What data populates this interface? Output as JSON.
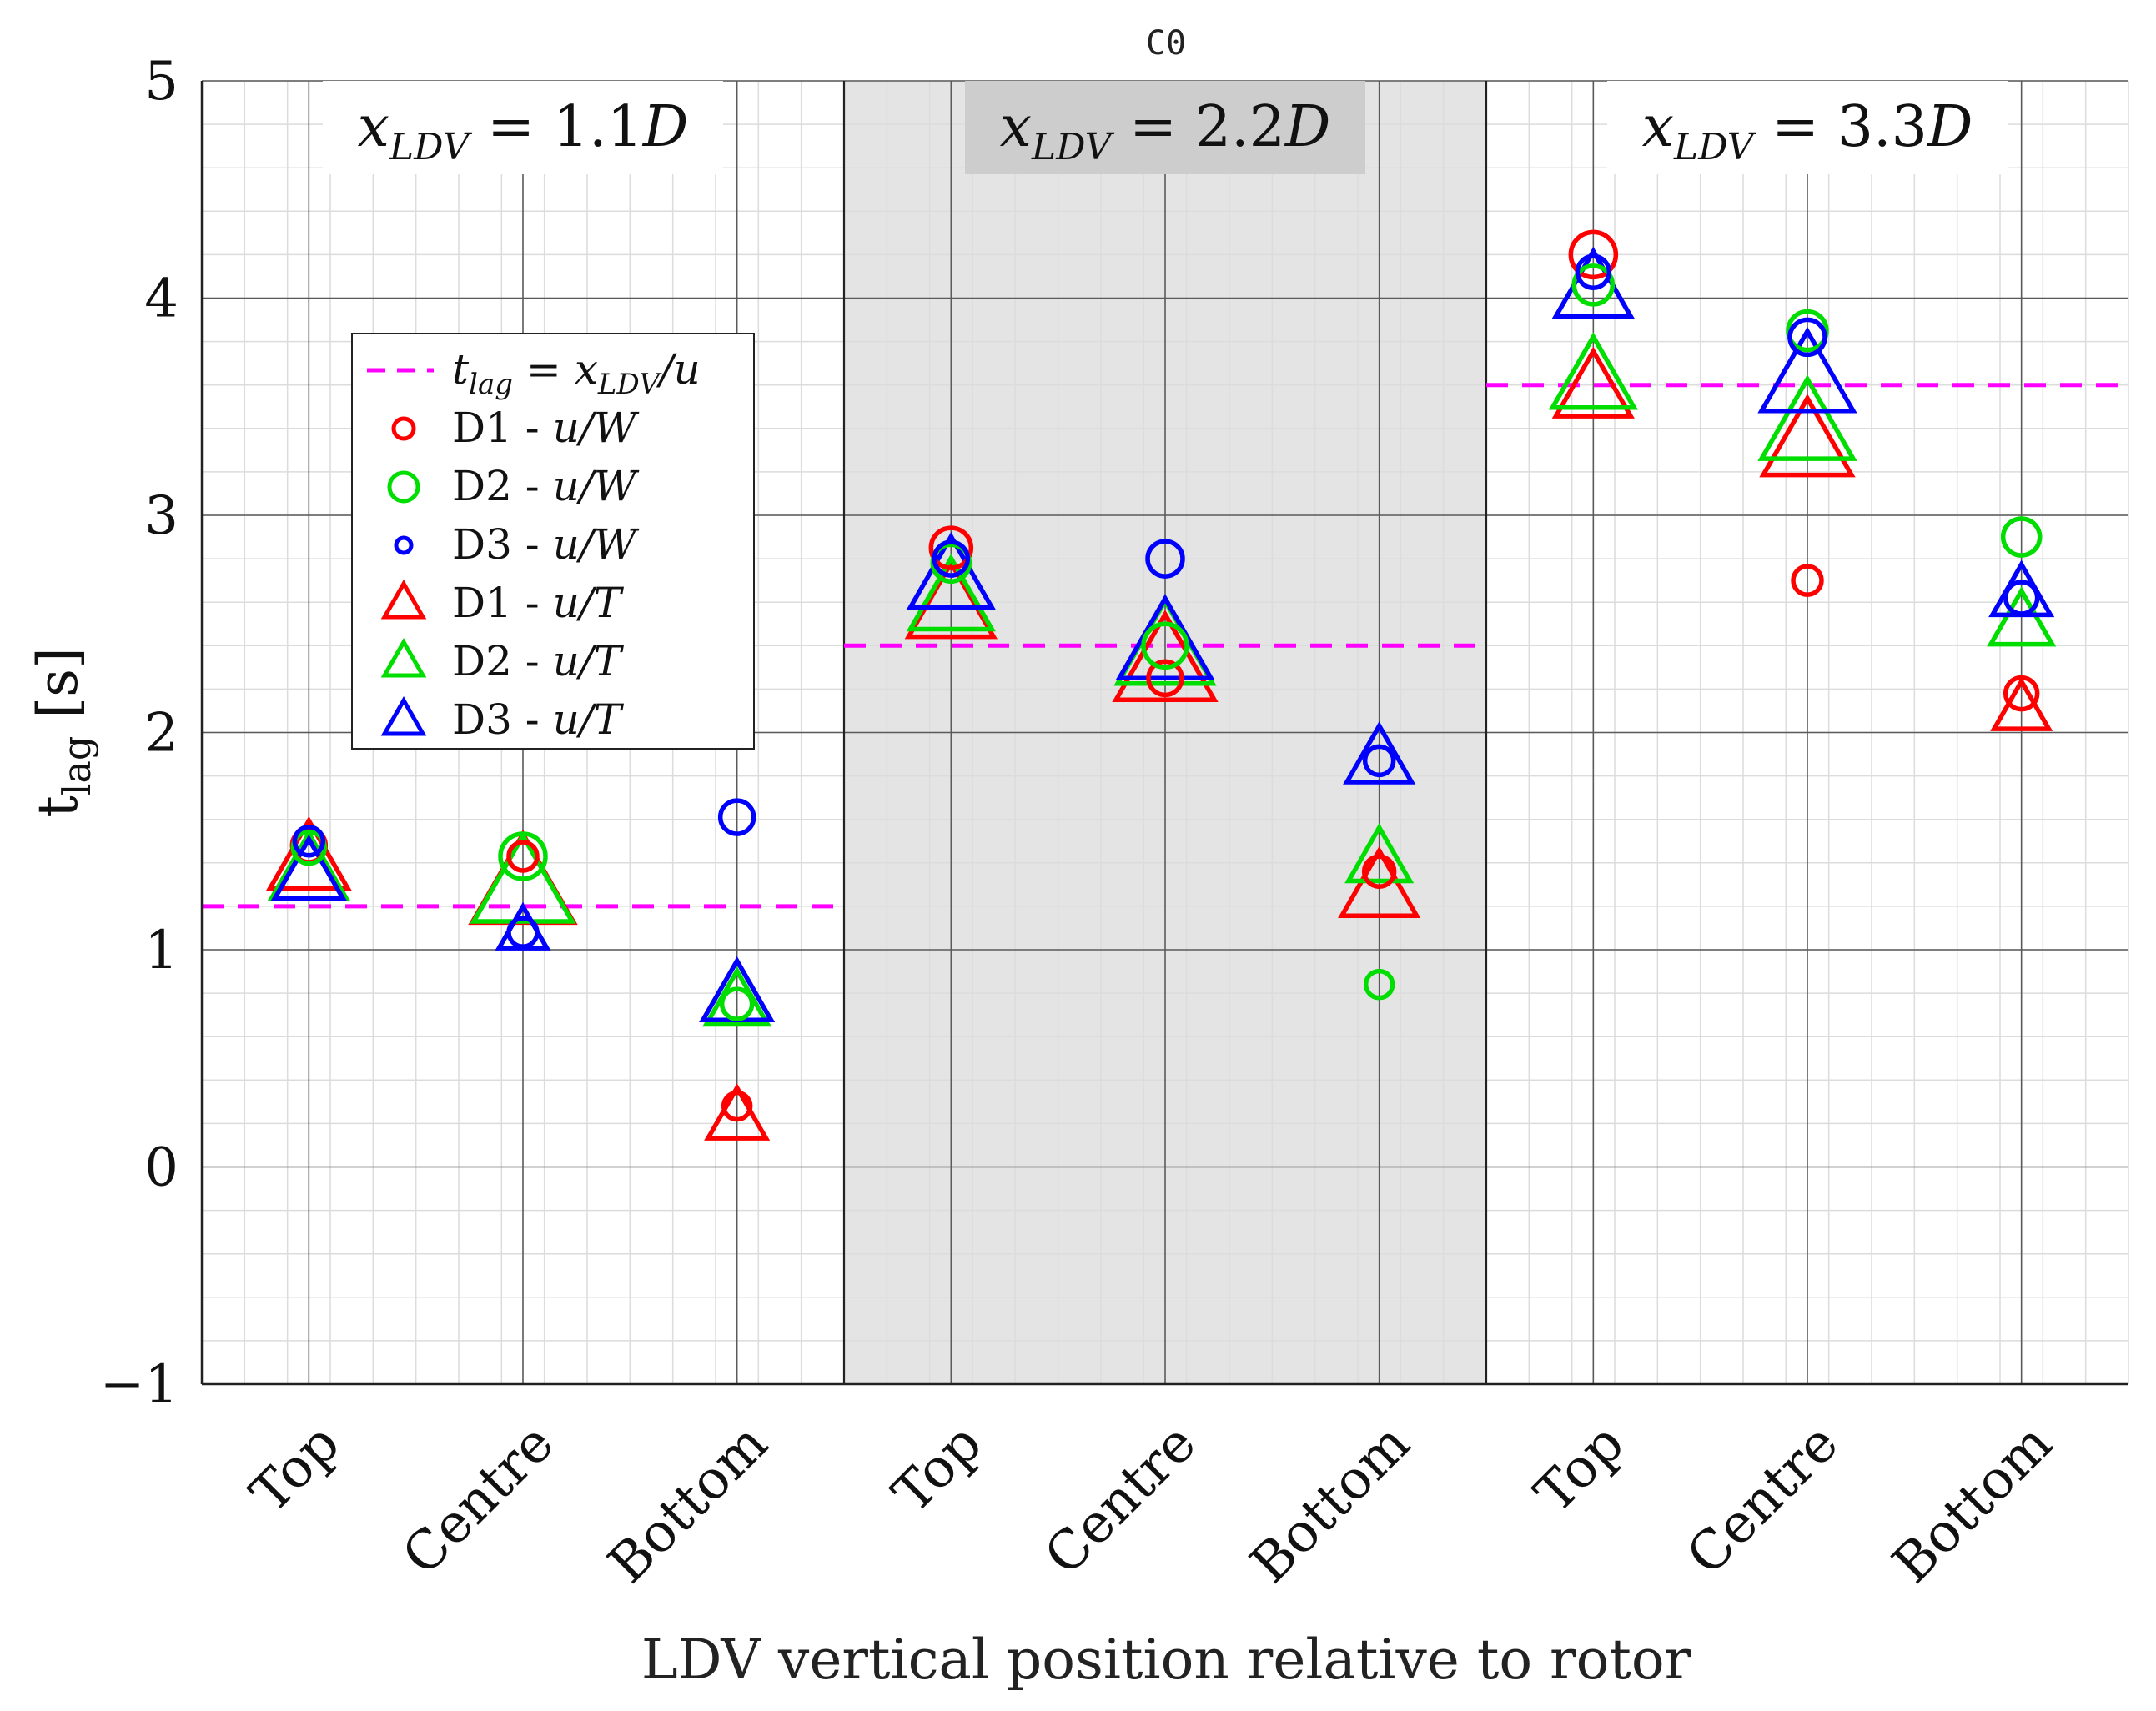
{
  "chart_data": {
    "type": "scatter",
    "title": "C0",
    "xlabel": "LDV vertical position relative to rotor",
    "ylabel": "t",
    "ylabel_sub": "lag",
    "ylabel_unit": "[s]",
    "ylim": [
      -1,
      5
    ],
    "yticks": [
      -1,
      0,
      1,
      2,
      3,
      4,
      5
    ],
    "ytick_labels": [
      "−1",
      "0",
      "1",
      "2",
      "3",
      "4",
      "5"
    ],
    "grid": true,
    "minor_grid": true,
    "legend_position": "upper-left of first panel",
    "categories": [
      "Top",
      "Centre",
      "Bottom",
      "Top",
      "Centre",
      "Bottom",
      "Top",
      "Centre",
      "Bottom"
    ],
    "panels": [
      {
        "label_italic": "x",
        "label_sub": "LDV",
        "label_value": "= 1.1",
        "label_unit": "D",
        "shaded": false,
        "reference_t_lag": 1.2
      },
      {
        "label_italic": "x",
        "label_sub": "LDV",
        "label_value": "= 2.2",
        "label_unit": "D",
        "shaded": true,
        "reference_t_lag": 2.4
      },
      {
        "label_italic": "x",
        "label_sub": "LDV",
        "label_value": "= 3.3",
        "label_unit": "D",
        "shaded": false,
        "reference_t_lag": 3.6
      }
    ],
    "reference_line": {
      "legend_label_lhs": "t",
      "legend_label_sub": "lag",
      "legend_label_rhs": " = x",
      "legend_label_rhs_sub": "LDV",
      "legend_label_tail": "/u",
      "color": "#ff00ff"
    },
    "series": [
      {
        "name": "D1 - u/W",
        "legend_prefix": "D1 - ",
        "legend_math": "u/W",
        "marker": "circle",
        "color": "#ff0000",
        "values": [
          1.48,
          1.43,
          0.28,
          2.85,
          2.25,
          1.36,
          4.2,
          2.7,
          2.18
        ],
        "sizes": [
          0.55,
          0.4,
          0.35,
          0.75,
          0.55,
          0.45,
          0.9,
          0.4,
          0.5
        ]
      },
      {
        "name": "D2 - u/W",
        "legend_prefix": "D2 - ",
        "legend_math": "u/W",
        "marker": "circle",
        "color": "#00dd00",
        "values": [
          1.47,
          1.43,
          0.75,
          2.78,
          2.4,
          0.84,
          4.06,
          3.85,
          2.9
        ],
        "sizes": [
          0.5,
          0.9,
          0.45,
          0.65,
          0.85,
          0.35,
          0.7,
          0.7,
          0.65
        ]
      },
      {
        "name": "D3 - u/W",
        "legend_prefix": "D3 - ",
        "legend_math": "u/W",
        "marker": "circle",
        "color": "#0000ff",
        "values": [
          1.5,
          1.08,
          1.61,
          2.8,
          2.8,
          1.87,
          4.12,
          3.82,
          2.62
        ],
        "sizes": [
          0.4,
          0.4,
          0.55,
          0.55,
          0.6,
          0.4,
          0.5,
          0.6,
          0.5
        ]
      },
      {
        "name": "D1 - u/T",
        "legend_prefix": "D1 - ",
        "legend_math": "u/T",
        "marker": "triangle",
        "color": "#ff0000",
        "values": [
          1.4,
          1.28,
          0.22,
          2.57,
          2.3,
          1.27,
          3.57,
          3.32,
          2.1
        ],
        "sizes": [
          0.85,
          1.2,
          0.55,
          0.95,
          1.15,
          0.8,
          0.8,
          1.0,
          0.5
        ]
      },
      {
        "name": "D2 - u/T",
        "legend_prefix": "D2 - ",
        "legend_math": "u/T",
        "marker": "triangle",
        "color": "#00dd00",
        "values": [
          1.35,
          1.28,
          0.75,
          2.6,
          2.37,
          1.41,
          3.62,
          3.4,
          2.5
        ],
        "sizes": [
          0.8,
          1.15,
          0.6,
          0.9,
          1.1,
          0.6,
          0.9,
          1.05,
          0.6
        ]
      },
      {
        "name": "D3 - u/T",
        "legend_prefix": "D3 - ",
        "legend_math": "u/T",
        "marker": "triangle",
        "color": "#0000ff",
        "values": [
          1.34,
          1.08,
          0.78,
          2.7,
          2.39,
          1.87,
          4.03,
          3.62,
          2.63
        ],
        "sizes": [
          0.7,
          0.4,
          0.7,
          0.9,
          1.05,
          0.65,
          0.8,
          1.05,
          0.55
        ]
      }
    ]
  }
}
